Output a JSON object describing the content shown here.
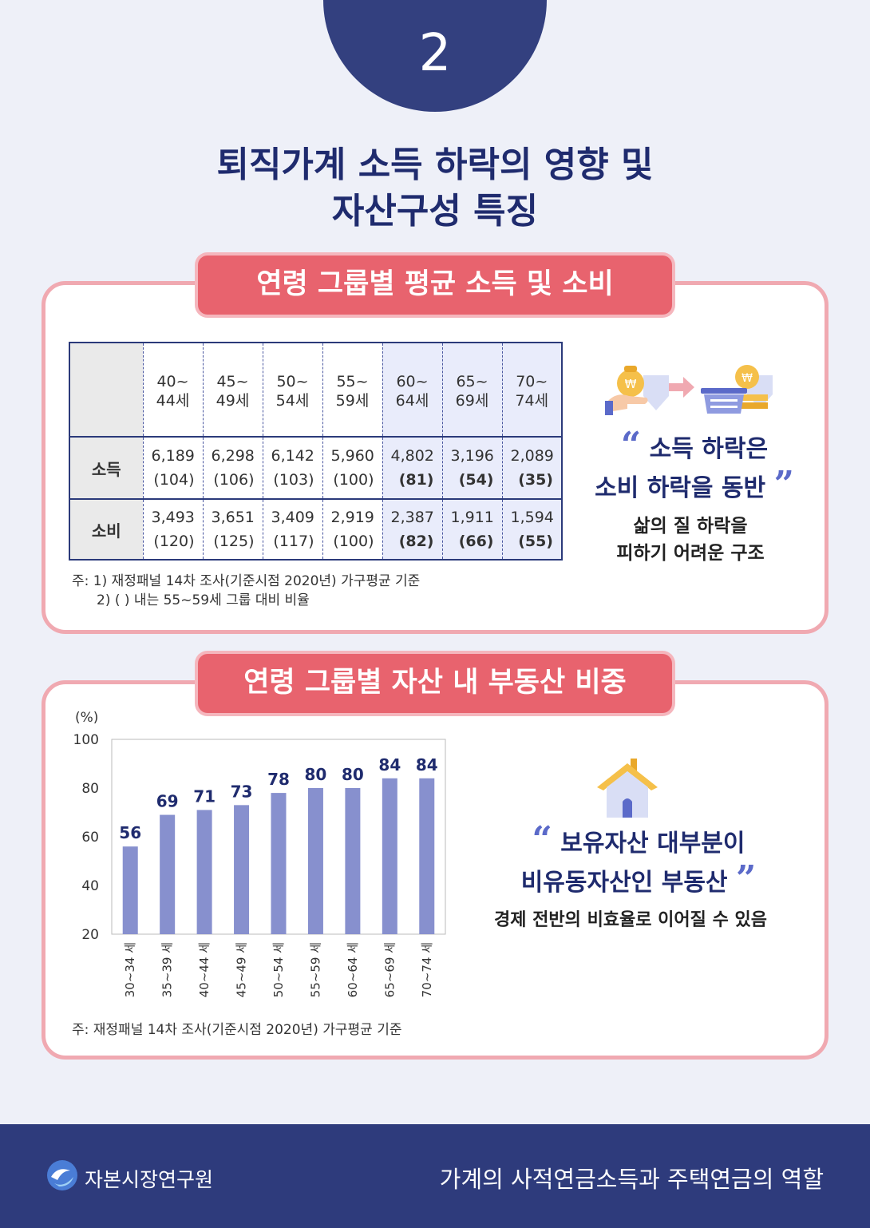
{
  "section_number": "2",
  "title_line1": "퇴직가계 소득 하락의 영향 및",
  "title_line2": "자산구성 특징",
  "card1": {
    "ribbon": "연령 그룹별 평균 소득 및 소비",
    "table": {
      "age_groups": [
        {
          "l1": "40~",
          "l2": "44세"
        },
        {
          "l1": "45~",
          "l2": "49세"
        },
        {
          "l1": "50~",
          "l2": "54세"
        },
        {
          "l1": "55~",
          "l2": "59세"
        },
        {
          "l1": "60~",
          "l2": "64세"
        },
        {
          "l1": "65~",
          "l2": "69세"
        },
        {
          "l1": "70~",
          "l2": "74세"
        }
      ],
      "rows": [
        {
          "label": "소득",
          "values": [
            "6,189",
            "6,298",
            "6,142",
            "5,960",
            "4,802",
            "3,196",
            "2,089"
          ],
          "ratios": [
            "(104)",
            "(106)",
            "(103)",
            "(100)",
            "(81)",
            "(54)",
            "(35)"
          ]
        },
        {
          "label": "소비",
          "values": [
            "3,493",
            "3,651",
            "3,409",
            "2,919",
            "2,387",
            "1,911",
            "1,594"
          ],
          "ratios": [
            "(120)",
            "(125)",
            "(117)",
            "(100)",
            "(82)",
            "(66)",
            "(55)"
          ]
        }
      ]
    },
    "note1": "주: 1) 재정패널 14차 조사(기준시점 2020년) 가구평균 기준",
    "note2": "2) (    ) 내는 55~59세 그룹 대비 비율",
    "quote_line1": "소득 하락은",
    "quote_line2": "소비 하락을 동반",
    "sub_line1": "삶의 질 하락을",
    "sub_line2": "피하기 어려운 구조"
  },
  "card2": {
    "ribbon": "연령 그룹별 자산 내 부동산 비중",
    "note": "주: 재정패널 14차 조사(기준시점 2020년) 가구평균 기준",
    "quote_line1": "보유자산 대부분이",
    "quote_line2": "비유동자산인 부동산",
    "sub": "경제 전반의 비효율로 이어질 수 있음"
  },
  "chart_data": {
    "type": "bar",
    "unit_label": "(%)",
    "categories": [
      "30~34 세",
      "35~39 세",
      "40~44 세",
      "45~49 세",
      "50~54 세",
      "55~59 세",
      "60~64 세",
      "65~69 세",
      "70~74 세"
    ],
    "values": [
      56,
      69,
      71,
      73,
      78,
      80,
      80,
      84,
      84
    ],
    "ylim": [
      20,
      100
    ],
    "yticks": [
      "100",
      "80",
      "60",
      "40",
      "20"
    ],
    "bar_color": "#8790ce"
  },
  "colors": {
    "navy": "#2e3b7c",
    "ribbon": "#e8636e",
    "frame": "#f0a9b1"
  },
  "footer": {
    "org": "자본시장연구원",
    "doc_title": "가계의 사적연금소득과 주택연금의 역할"
  },
  "icons": [
    "money-bag-hand-icon",
    "arrow-right-icon",
    "basket-coins-icon",
    "house-icon",
    "quote-open-icon",
    "quote-close-icon",
    "org-logo-icon"
  ]
}
